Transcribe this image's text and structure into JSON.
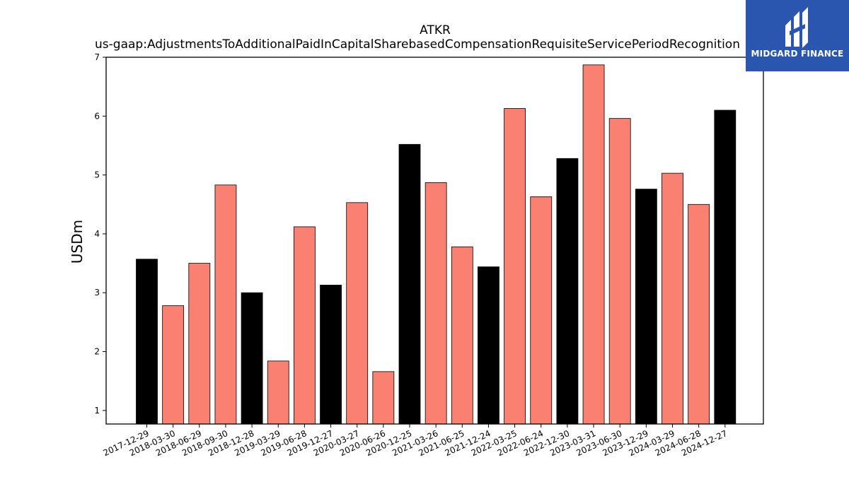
{
  "chart_data": {
    "type": "bar",
    "title": "ATKR",
    "subtitle": "us-gaap:AdjustmentsToAdditionalPaidInCapitalSharebasedCompensationRequisiteServicePeriodRecognition",
    "xlabel": "",
    "ylabel": "USDm",
    "ylim": [
      0.77,
      7.0
    ],
    "yticks": [
      1,
      2,
      3,
      4,
      5,
      6,
      7
    ],
    "grid": false,
    "categories": [
      "2017-12-29",
      "2018-03-30",
      "2018-06-29",
      "2018-09-30",
      "2018-12-28",
      "2019-03-29",
      "2019-06-28",
      "2019-12-27",
      "2020-03-27",
      "2020-06-26",
      "2020-12-25",
      "2021-03-26",
      "2021-06-25",
      "2021-12-24",
      "2022-03-25",
      "2022-06-24",
      "2022-12-30",
      "2023-03-31",
      "2023-06-30",
      "2023-12-29",
      "2024-03-29",
      "2024-06-28",
      "2024-12-27"
    ],
    "values": [
      3.57,
      2.78,
      3.5,
      4.83,
      3.0,
      1.84,
      4.12,
      3.13,
      4.53,
      1.66,
      5.52,
      4.87,
      3.78,
      3.44,
      6.13,
      4.63,
      5.28,
      6.87,
      5.96,
      4.76,
      5.03,
      4.5,
      6.1
    ],
    "bar_colors": [
      "#000000",
      "#fa8072",
      "#fa8072",
      "#fa8072",
      "#000000",
      "#fa8072",
      "#fa8072",
      "#000000",
      "#fa8072",
      "#fa8072",
      "#000000",
      "#fa8072",
      "#fa8072",
      "#000000",
      "#fa8072",
      "#fa8072",
      "#000000",
      "#fa8072",
      "#fa8072",
      "#000000",
      "#fa8072",
      "#fa8072",
      "#000000"
    ],
    "colors": {
      "black": "#000000",
      "salmon": "#fa8072"
    }
  },
  "logo": {
    "brand": "MIDGARD FINANCE",
    "background": "#2b56b0",
    "icon": "midgard-logo-icon"
  }
}
